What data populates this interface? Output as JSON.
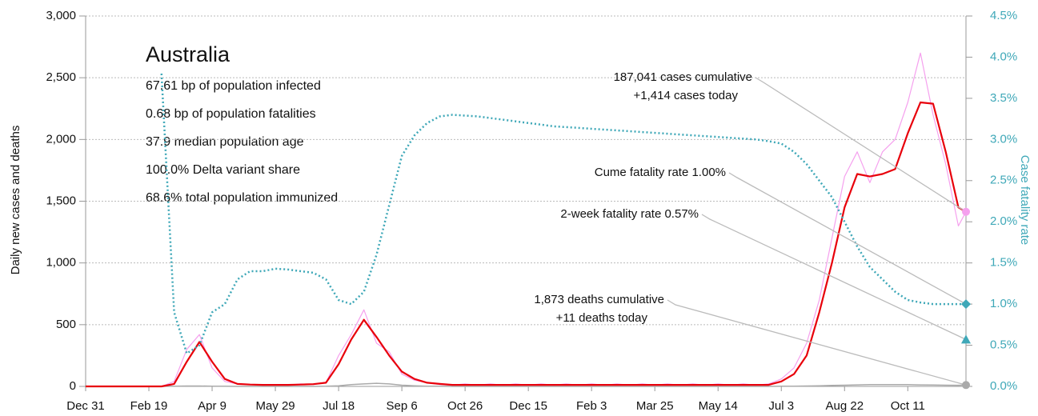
{
  "chart_data": {
    "type": "line",
    "title": "Australia",
    "info_lines": [
      "67.61 bp of population infected",
      "0.68 bp of population fatalities",
      "37.9 median population age",
      "100.0% Delta variant share",
      "68.6% total population immunized"
    ],
    "ylabel": "Daily new cases and deaths",
    "y2label": "Case fatality rate",
    "x": [
      0,
      10,
      20,
      30,
      40,
      50,
      60,
      70,
      80,
      90,
      100,
      110,
      120,
      130,
      140,
      150,
      160,
      170,
      180,
      190,
      200,
      210,
      220,
      230,
      240,
      250,
      260,
      270,
      280,
      290,
      300,
      310,
      320,
      330,
      340,
      350,
      360,
      370,
      380,
      390,
      400,
      410,
      420,
      430,
      440,
      450,
      460,
      470,
      480,
      490,
      500,
      510,
      520,
      530,
      540,
      550,
      560,
      570,
      580,
      590,
      600,
      610,
      620,
      630,
      640,
      650,
      660,
      670,
      680,
      690,
      696
    ],
    "xlim": [
      0,
      696
    ],
    "xticks": [
      {
        "value": 0,
        "label": "Dec 31"
      },
      {
        "value": 50,
        "label": "Feb 19"
      },
      {
        "value": 100,
        "label": "Apr 9"
      },
      {
        "value": 150,
        "label": "May 29"
      },
      {
        "value": 200,
        "label": "Jul 18"
      },
      {
        "value": 250,
        "label": "Sep 6"
      },
      {
        "value": 300,
        "label": "Oct 26"
      },
      {
        "value": 350,
        "label": "Dec 15"
      },
      {
        "value": 400,
        "label": "Feb 3"
      },
      {
        "value": 450,
        "label": "Mar 25"
      },
      {
        "value": 500,
        "label": "May 14"
      },
      {
        "value": 550,
        "label": "Jul 3"
      },
      {
        "value": 600,
        "label": "Aug 22"
      },
      {
        "value": 650,
        "label": "Oct 11"
      }
    ],
    "ylim": [
      0,
      3000
    ],
    "yticks": [
      0,
      500,
      {
        "value": 1000,
        "label": "1,000"
      },
      {
        "value": 1500,
        "label": "1,500"
      },
      {
        "value": 2000,
        "label": "2,000"
      },
      {
        "value": 2500,
        "label": "2,500"
      },
      {
        "value": 3000,
        "label": "3,000"
      }
    ],
    "y2lim": [
      0,
      4.5
    ],
    "y2ticks": [
      {
        "value": 0,
        "label": "0.0%"
      },
      {
        "value": 0.5,
        "label": "0.5%"
      },
      {
        "value": 1,
        "label": "1.0%"
      },
      {
        "value": 1.5,
        "label": "1.5%"
      },
      {
        "value": 2,
        "label": "2.0%"
      },
      {
        "value": 2.5,
        "label": "2.5%"
      },
      {
        "value": 3,
        "label": "3.0%"
      },
      {
        "value": 3.5,
        "label": "3.5%"
      },
      {
        "value": 4,
        "label": "4.0%"
      },
      {
        "value": 4.5,
        "label": "4.5%"
      }
    ],
    "grid": true,
    "series": [
      {
        "color": "#f5a0ee",
        "width": 1.2,
        "values": [
          0,
          0,
          0,
          0,
          0,
          0,
          0,
          40,
          300,
          420,
          150,
          40,
          20,
          15,
          10,
          15,
          10,
          20,
          15,
          30,
          250,
          420,
          620,
          350,
          280,
          100,
          50,
          30,
          15,
          10,
          20,
          10,
          20,
          10,
          20,
          10,
          20,
          10,
          20,
          10,
          20,
          10,
          20,
          10,
          20,
          10,
          20,
          10,
          20,
          10,
          20,
          10,
          20,
          10,
          20,
          60,
          150,
          350,
          700,
          1200,
          1700,
          1900,
          1650,
          1900,
          2000,
          2300,
          2700,
          2200,
          1800,
          1300,
          1414
        ]
      },
      {
        "color": "#aaaaaa",
        "width": 1.5,
        "values": [
          0,
          0,
          0,
          0,
          0,
          0,
          0,
          1,
          3,
          3,
          2,
          1,
          0,
          0,
          0,
          0,
          0,
          0,
          0,
          1,
          5,
          15,
          20,
          25,
          20,
          10,
          5,
          2,
          1,
          0,
          0,
          0,
          0,
          0,
          0,
          0,
          0,
          0,
          0,
          0,
          0,
          0,
          0,
          0,
          0,
          0,
          0,
          0,
          0,
          0,
          0,
          0,
          0,
          0,
          0,
          1,
          2,
          3,
          5,
          8,
          10,
          12,
          14,
          15,
          15,
          14,
          12,
          11,
          10,
          9,
          11
        ]
      },
      {
        "color": "#e8000b",
        "width": 2.2,
        "values": [
          0,
          0,
          0,
          0,
          0,
          0,
          0,
          20,
          200,
          360,
          200,
          60,
          20,
          15,
          12,
          12,
          12,
          15,
          18,
          30,
          180,
          380,
          540,
          400,
          250,
          120,
          60,
          30,
          20,
          12,
          12,
          12,
          12,
          12,
          12,
          12,
          12,
          12,
          12,
          12,
          12,
          12,
          12,
          12,
          12,
          12,
          12,
          12,
          12,
          12,
          12,
          12,
          12,
          12,
          12,
          40,
          100,
          250,
          600,
          1000,
          1450,
          1720,
          1700,
          1720,
          1760,
          2050,
          2300,
          2290,
          1900,
          1450,
          1414
        ]
      },
      {
        "color": "#3fa8b8",
        "width": 2.5,
        "dotted": true,
        "axis": "y2",
        "values": [
          null,
          null,
          null,
          null,
          null,
          null,
          3.8,
          0.9,
          0.4,
          0.5,
          0.9,
          1.0,
          1.3,
          1.4,
          1.4,
          1.43,
          1.42,
          1.4,
          1.38,
          1.3,
          1.05,
          1.0,
          1.15,
          1.6,
          2.2,
          2.8,
          3.05,
          3.2,
          3.28,
          3.3,
          3.29,
          3.28,
          3.26,
          3.24,
          3.22,
          3.2,
          3.18,
          3.16,
          3.15,
          3.14,
          3.13,
          3.12,
          3.11,
          3.1,
          3.09,
          3.08,
          3.07,
          3.06,
          3.05,
          3.04,
          3.03,
          3.02,
          3.01,
          3.0,
          2.98,
          2.95,
          2.85,
          2.7,
          2.5,
          2.3,
          2.0,
          1.7,
          1.45,
          1.3,
          1.15,
          1.05,
          1.02,
          1.0,
          1.0,
          1.0,
          1.0
        ]
      }
    ],
    "annotations": [
      {
        "lines": [
          "187,041 cases cumulative",
          "+1,414 cases today"
        ],
        "value": 1414,
        "marker": "circle",
        "color": "#f5a0ee"
      },
      {
        "lines": [
          "Cume fatality rate 1.00%"
        ],
        "value": 1.0,
        "axis": "y2",
        "marker": "diamond",
        "color": "#3fa8b8"
      },
      {
        "lines": [
          "2-week fatality rate 0.57%"
        ],
        "value": 0.57,
        "axis": "y2",
        "marker": "triangle",
        "color": "#3fa8b8"
      },
      {
        "lines": [
          "1,873 deaths cumulative",
          "+11 deaths today"
        ],
        "value": 11,
        "marker": "circle",
        "color": "#aaaaaa"
      }
    ]
  }
}
